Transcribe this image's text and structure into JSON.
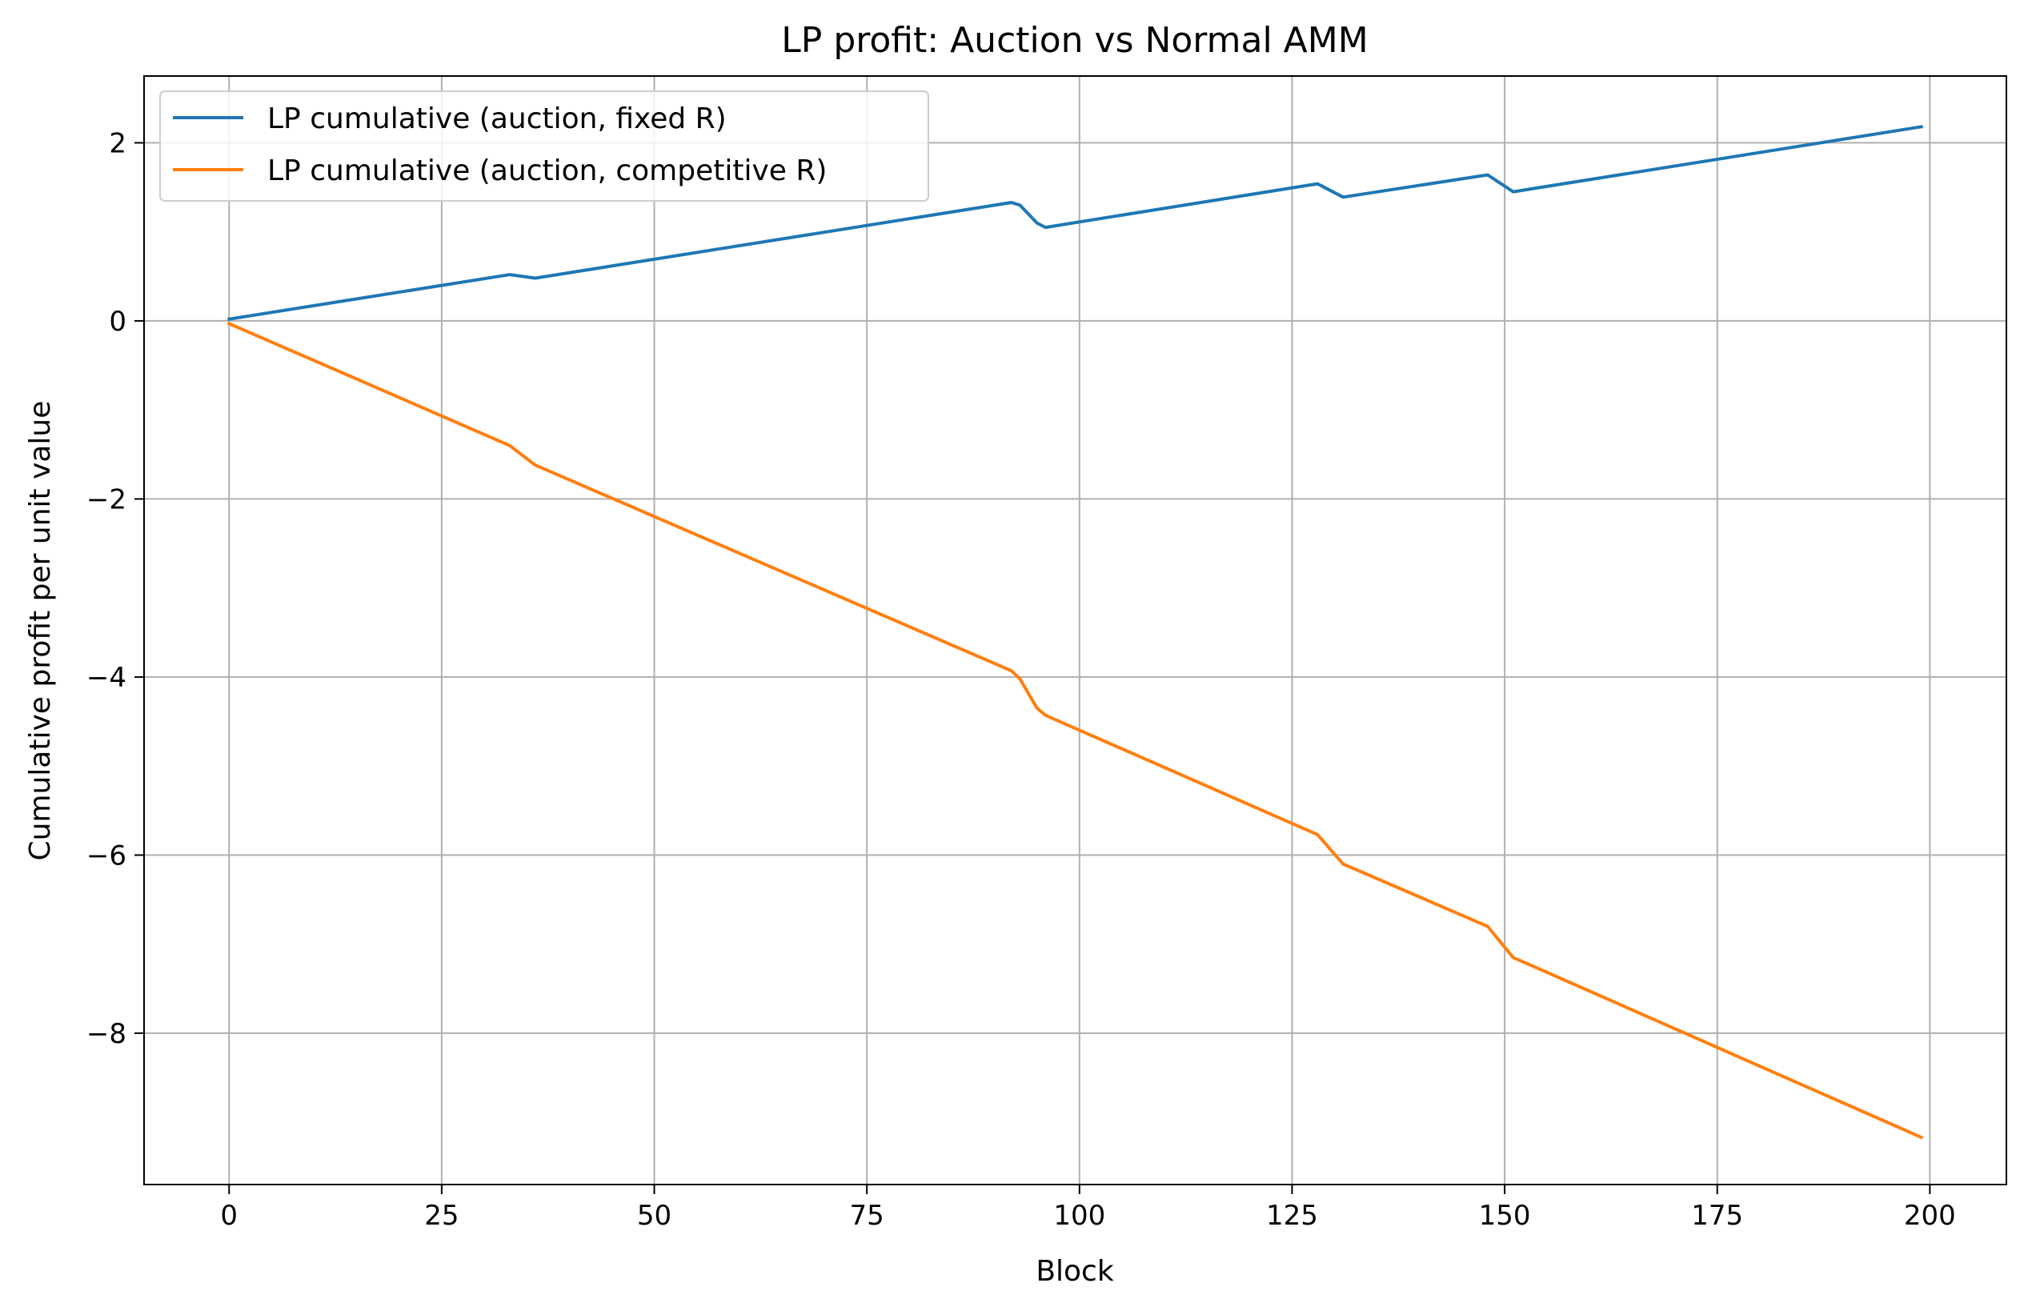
{
  "chart_data": {
    "type": "line",
    "title": "LP profit: Auction vs Normal AMM",
    "xlabel": "Block",
    "ylabel": "Cumulative profit per unit value",
    "xlim": [
      -10,
      209
    ],
    "ylim": [
      -9.7,
      2.75
    ],
    "xticks": [
      0,
      25,
      50,
      75,
      100,
      125,
      150,
      175,
      200
    ],
    "xtick_labels": [
      "0",
      "25",
      "50",
      "75",
      "100",
      "125",
      "150",
      "175",
      "200"
    ],
    "yticks": [
      2,
      0,
      -2,
      -4,
      -6,
      -8
    ],
    "ytick_labels": [
      "2",
      "0",
      "−2",
      "−4",
      "−6",
      "−8"
    ],
    "grid": true,
    "legend_position": "upper-left",
    "series": [
      {
        "name": "LP cumulative (auction, fixed R)",
        "color": "#1f77b4",
        "x": [
          0,
          33,
          36,
          92,
          93,
          95,
          96,
          128,
          131,
          148,
          151,
          199
        ],
        "y": [
          0.02,
          0.52,
          0.48,
          1.33,
          1.3,
          1.1,
          1.05,
          1.54,
          1.39,
          1.64,
          1.45,
          2.18
        ]
      },
      {
        "name": "LP cumulative (auction, competitive R)",
        "color": "#ff7f0e",
        "x": [
          0,
          33,
          36,
          92,
          93,
          95,
          96,
          128,
          131,
          148,
          151,
          199
        ],
        "y": [
          -0.03,
          -1.4,
          -1.62,
          -3.93,
          -4.02,
          -4.35,
          -4.43,
          -5.77,
          -6.1,
          -6.8,
          -7.15,
          -9.17
        ]
      }
    ]
  }
}
